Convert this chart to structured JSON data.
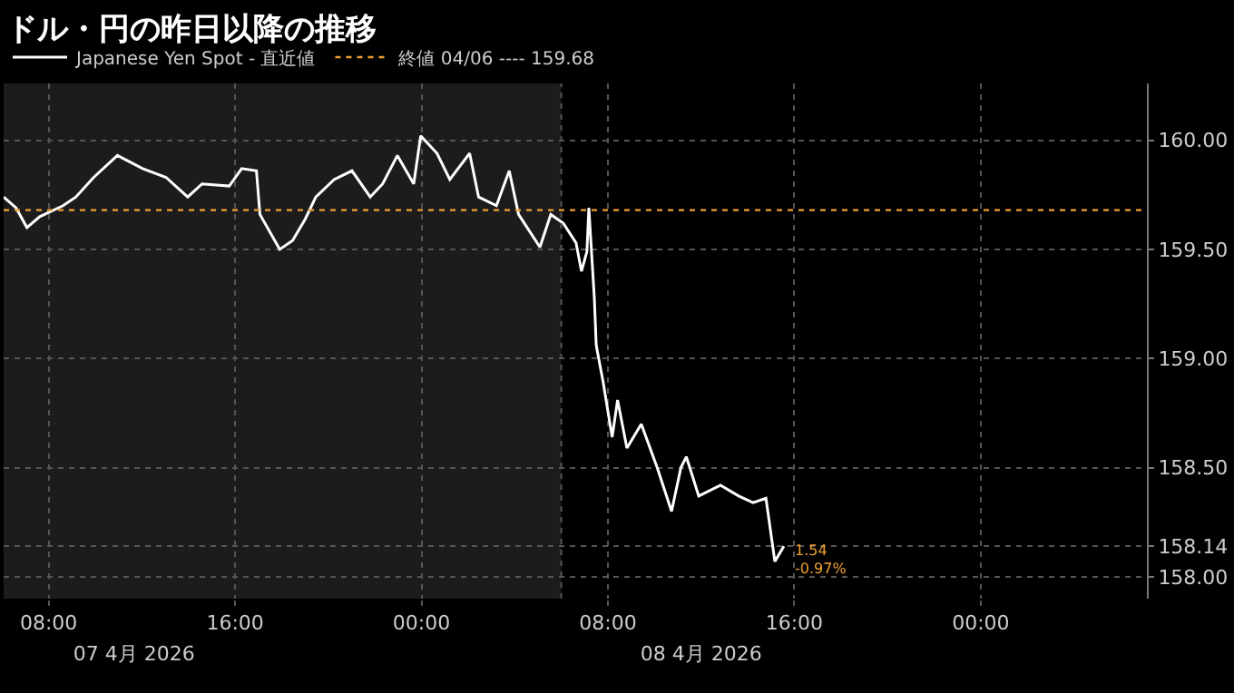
{
  "chart_data": {
    "type": "line",
    "title": "ドル・円の昨日以降の推移",
    "x": [
      "2026-04-07T06:04",
      "2026-04-07T06:36",
      "2026-04-07T07:04",
      "2026-04-07T07:37",
      "2026-04-07T08:37",
      "2026-04-07T09:10",
      "2026-04-07T09:56",
      "2026-04-07T10:57",
      "2026-04-07T12:02",
      "2026-04-07T13:02",
      "2026-04-07T13:58",
      "2026-04-07T14:35",
      "2026-04-07T15:45",
      "2026-04-07T16:17",
      "2026-04-07T16:55",
      "2026-04-07T17:04",
      "2026-04-07T17:55",
      "2026-04-07T18:28",
      "2026-04-07T19:01",
      "2026-04-07T19:28",
      "2026-04-07T20:15",
      "2026-04-07T21:01",
      "2026-04-07T21:48",
      "2026-04-07T22:20",
      "2026-04-07T22:58",
      "2026-04-07T23:40",
      "2026-04-07T23:58",
      "2026-04-08T00:40",
      "2026-04-08T01:13",
      "2026-04-08T02:04",
      "2026-04-08T02:27",
      "2026-04-08T03:13",
      "2026-04-08T03:46",
      "2026-04-08T04:10",
      "2026-04-08T05:05",
      "2026-04-08T05:33",
      "2026-04-08T06:05",
      "2026-04-08T06:38",
      "2026-04-08T06:52",
      "2026-04-08T07:06",
      "2026-04-08T07:11",
      "2026-04-08T07:25",
      "2026-04-08T07:30",
      "2026-04-08T07:48",
      "2026-04-08T08:11",
      "2026-04-08T08:25",
      "2026-04-08T08:49",
      "2026-04-08T09:26",
      "2026-04-08T10:07",
      "2026-04-08T10:44",
      "2026-04-08T11:08",
      "2026-04-08T11:22",
      "2026-04-08T11:54",
      "2026-04-08T12:50",
      "2026-04-08T13:37",
      "2026-04-08T14:14",
      "2026-04-08T14:47",
      "2026-04-08T15:10",
      "2026-04-08T15:33"
    ],
    "series": [
      {
        "name": "Japanese Yen Spot - 直近値",
        "color": "#ffffff",
        "values": [
          159.74,
          159.69,
          159.6,
          159.65,
          159.7,
          159.74,
          159.83,
          159.93,
          159.87,
          159.83,
          159.74,
          159.8,
          159.79,
          159.87,
          159.86,
          159.66,
          159.5,
          159.54,
          159.64,
          159.74,
          159.82,
          159.86,
          159.74,
          159.8,
          159.93,
          159.8,
          160.02,
          159.94,
          159.82,
          159.94,
          159.74,
          159.7,
          159.86,
          159.66,
          159.51,
          159.66,
          159.62,
          159.53,
          159.4,
          159.49,
          159.69,
          159.28,
          159.06,
          158.89,
          158.64,
          158.81,
          158.59,
          158.7,
          158.5,
          158.3,
          158.5,
          158.55,
          158.37,
          158.42,
          158.37,
          158.34,
          158.36,
          158.07,
          158.14
        ]
      }
    ],
    "xlim": [
      "2026-04-07T06:04",
      "2026-04-09T07:08"
    ],
    "xticks": [
      {
        "value": "2026-04-07T08:00",
        "label": "08:00"
      },
      {
        "value": "2026-04-07T16:00",
        "label": "16:00"
      },
      {
        "value": "2026-04-08T00:00",
        "label": "00:00"
      },
      {
        "value": "2026-04-08T08:00",
        "label": "08:00"
      },
      {
        "value": "2026-04-08T16:00",
        "label": "16:00"
      },
      {
        "value": "2026-04-09T00:00",
        "label": "00:00"
      }
    ],
    "x2lim": [
      "2026-04-07T06:04",
      "2026-04-09T07:08"
    ],
    "x2ticks": [
      {
        "value": "2026-04-07T11:40",
        "label": "07 4月 2026"
      },
      {
        "value": "2026-04-08T12:00",
        "label": "08 4月 2026"
      }
    ],
    "ylim": [
      157.9,
      160.26
    ],
    "yticks": [
      {
        "value": 158,
        "label": "158.00"
      },
      {
        "value": 158.5,
        "label": "158.50"
      },
      {
        "value": 159,
        "label": "159.00"
      },
      {
        "value": 159.5,
        "label": "159.50"
      },
      {
        "value": 160,
        "label": "160.00"
      },
      {
        "value": 158.14,
        "label": "158.14"
      }
    ],
    "ref_lines": [
      {
        "axis": "y",
        "value": 159.68,
        "label": "終値 04/06 ---- 159.68",
        "color": "#f0a030",
        "line_style": "dotted"
      }
    ],
    "bands": [
      {
        "axis": "x",
        "from": "2026-04-07T06:04",
        "to": "2026-04-08T06:00",
        "color": "#1c1c1c"
      }
    ],
    "annotations": [
      {
        "text": "1.54",
        "x": "2026-04-08T15:33",
        "y": 158.14
      },
      {
        "text": "-0.97%",
        "x": "2026-04-08T15:33",
        "y": 158.14
      }
    ],
    "grid": true,
    "legend": "top left",
    "marker": "none",
    "line_style": "solid"
  }
}
